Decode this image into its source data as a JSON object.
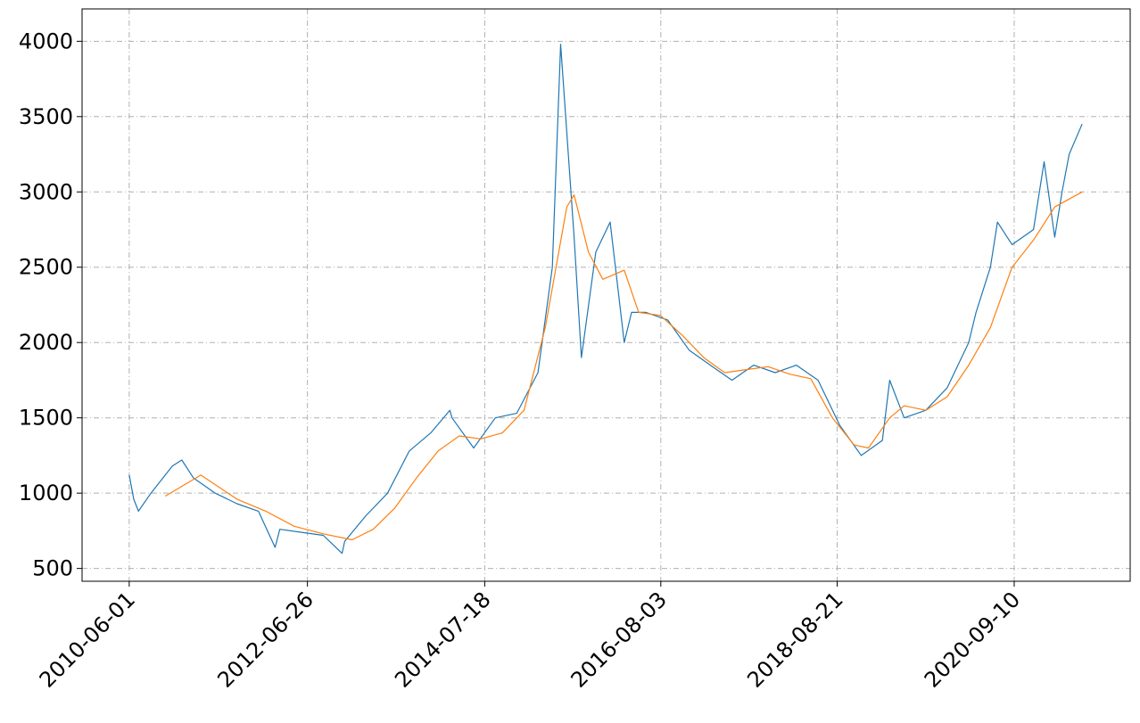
{
  "chart_data": {
    "type": "line",
    "xlim": [
      "2009-11-13",
      "2022-01-15"
    ],
    "ylim": [
      415,
      4215
    ],
    "xticks": [
      "2010-06-01",
      "2012-06-26",
      "2014-07-18",
      "2016-08-03",
      "2018-08-21",
      "2020-09-10"
    ],
    "yticks": [
      500,
      1000,
      1500,
      2000,
      2500,
      3000,
      3500,
      4000
    ],
    "grid": true,
    "series": [
      {
        "color": "#1f77b4",
        "x": [
          "2010-06-01",
          "2010-06-20",
          "2010-07-10",
          "2010-09-01",
          "2010-12-01",
          "2011-01-10",
          "2011-03-01",
          "2011-06-01",
          "2011-09-01",
          "2011-12-01",
          "2012-02-10",
          "2012-03-01",
          "2012-06-01",
          "2012-09-01",
          "2012-11-20",
          "2012-12-01",
          "2013-03-01",
          "2013-06-01",
          "2013-09-01",
          "2013-12-01",
          "2014-02-20",
          "2014-03-01",
          "2014-06-01",
          "2014-09-01",
          "2014-12-01",
          "2015-03-01",
          "2015-05-01",
          "2015-06-05",
          "2015-08-01",
          "2015-09-01",
          "2015-11-01",
          "2016-01-01",
          "2016-03-01",
          "2016-04-01",
          "2016-06-01",
          "2016-09-01",
          "2016-12-01",
          "2017-03-01",
          "2017-06-01",
          "2017-09-01",
          "2017-12-01",
          "2018-03-01",
          "2018-06-01",
          "2018-09-01",
          "2018-12-01",
          "2019-03-01",
          "2019-04-01",
          "2019-06-01",
          "2019-09-01",
          "2019-12-01",
          "2020-03-01",
          "2020-04-01",
          "2020-06-01",
          "2020-07-01",
          "2020-09-01",
          "2020-12-01",
          "2021-01-15",
          "2021-03-01",
          "2021-04-01",
          "2021-05-01",
          "2021-06-25"
        ],
        "values": [
          1120,
          960,
          880,
          1000,
          1180,
          1220,
          1100,
          1000,
          930,
          880,
          640,
          760,
          740,
          720,
          600,
          680,
          850,
          1000,
          1280,
          1400,
          1550,
          1500,
          1300,
          1500,
          1530,
          1800,
          2500,
          3980,
          2700,
          1900,
          2600,
          2800,
          2000,
          2200,
          2200,
          2150,
          1950,
          1850,
          1750,
          1850,
          1800,
          1850,
          1750,
          1450,
          1250,
          1350,
          1750,
          1500,
          1550,
          1700,
          2000,
          2200,
          2500,
          2800,
          2650,
          2750,
          3200,
          2700,
          3000,
          3250,
          3450
        ]
      },
      {
        "color": "#ff7f0e",
        "x": [
          "2010-11-01",
          "2011-04-01",
          "2011-09-01",
          "2012-01-01",
          "2012-05-01",
          "2012-09-01",
          "2013-01-01",
          "2013-04-01",
          "2013-07-01",
          "2013-10-01",
          "2014-01-01",
          "2014-04-01",
          "2014-07-01",
          "2014-10-01",
          "2015-01-01",
          "2015-04-01",
          "2015-07-01",
          "2015-08-01",
          "2015-10-01",
          "2015-12-01",
          "2016-03-01",
          "2016-05-01",
          "2016-08-01",
          "2016-11-01",
          "2017-02-01",
          "2017-05-01",
          "2017-08-01",
          "2017-11-01",
          "2018-02-01",
          "2018-05-01",
          "2018-08-01",
          "2018-11-01",
          "2019-01-01",
          "2019-04-01",
          "2019-06-01",
          "2019-09-01",
          "2019-12-01",
          "2020-03-01",
          "2020-06-01",
          "2020-09-01",
          "2020-12-01",
          "2021-03-01",
          "2021-06-25"
        ],
        "values": [
          980,
          1120,
          960,
          880,
          780,
          730,
          690,
          760,
          900,
          1100,
          1280,
          1380,
          1360,
          1400,
          1550,
          2100,
          2900,
          2980,
          2600,
          2420,
          2480,
          2200,
          2180,
          2050,
          1900,
          1800,
          1820,
          1840,
          1790,
          1760,
          1500,
          1320,
          1300,
          1500,
          1580,
          1550,
          1640,
          1850,
          2100,
          2500,
          2680,
          2900,
          3000
        ]
      }
    ]
  }
}
